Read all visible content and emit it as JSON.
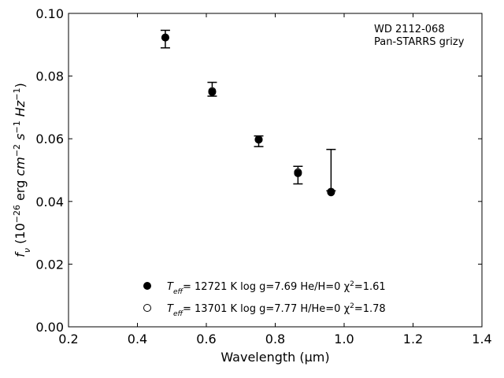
{
  "chart_data": {
    "type": "scatter",
    "title": "",
    "xlabel": "Wavelength (μm)",
    "ylabel": "f_ν (10^-26 erg cm^-2 s^-1 Hz^-1)",
    "xlim": [
      0.2,
      1.4
    ],
    "ylim": [
      0.0,
      0.1
    ],
    "xticks": [
      0.2,
      0.4,
      0.6,
      0.8,
      1.0,
      1.2,
      1.4
    ],
    "xtick_labels": [
      "0.2",
      "0.4",
      "0.6",
      "0.8",
      "1.0",
      "1.2",
      "1.4"
    ],
    "yticks": [
      0.0,
      0.02,
      0.04,
      0.06,
      0.08,
      0.1
    ],
    "ytick_labels": [
      "0.00",
      "0.02",
      "0.04",
      "0.06",
      "0.08",
      "0.10"
    ],
    "grid": false,
    "annotations": [
      "WD 2112-068",
      "Pan-STARRS grizy"
    ],
    "observed": {
      "x": [
        0.481,
        0.617,
        0.752,
        0.866,
        0.962
      ],
      "y": [
        0.0918,
        0.0758,
        0.0592,
        0.0484,
        0.05
      ],
      "y_err": [
        0.0028,
        0.0022,
        0.0017,
        0.0028,
        0.0066
      ]
    },
    "series": [
      {
        "marker": "filled-circle",
        "label_parts": [
          "T",
          "eff",
          "= 12721 K  log g=7.69  He/H=0  χ",
          "2",
          "=1.61"
        ],
        "x": [
          0.481,
          0.617,
          0.752,
          0.866,
          0.962
        ],
        "y": [
          0.0923,
          0.0749,
          0.0598,
          0.049,
          0.0429
        ]
      },
      {
        "marker": "open-circle",
        "label_parts": [
          "T",
          "eff",
          "= 13701 K  log g=7.77  H/He=0  χ",
          "2",
          "=1.78"
        ],
        "x": [
          0.481,
          0.617,
          0.752,
          0.866,
          0.962
        ],
        "y": [
          0.0923,
          0.0752,
          0.0597,
          0.0493,
          0.0431
        ]
      }
    ],
    "legend_position": "lower-center"
  }
}
